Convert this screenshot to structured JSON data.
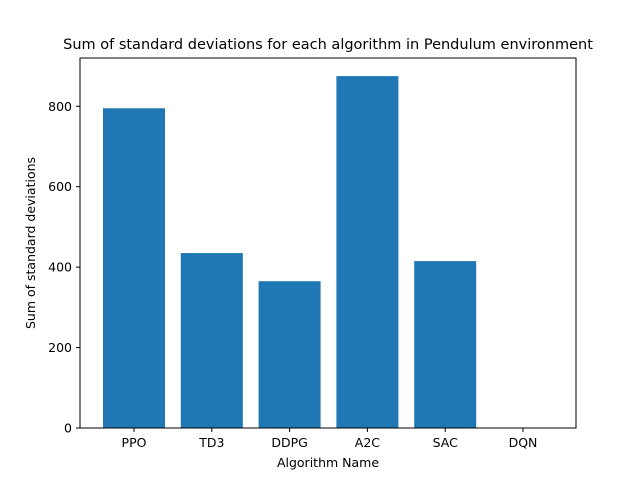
{
  "chart_data": {
    "type": "bar",
    "title": "Sum of standard deviations for each algorithm in Pendulum environment",
    "xlabel": "Algorithm Name",
    "ylabel": "Sum of standard deviations",
    "categories": [
      "PPO",
      "TD3",
      "DDPG",
      "A2C",
      "SAC",
      "DQN"
    ],
    "values": [
      795,
      435,
      365,
      875,
      415,
      0
    ],
    "ylim": [
      0,
      920
    ],
    "yticks": [
      0,
      200,
      400,
      600,
      800
    ],
    "grid": false,
    "legend": "none",
    "bar_color": "#1f77b4"
  }
}
